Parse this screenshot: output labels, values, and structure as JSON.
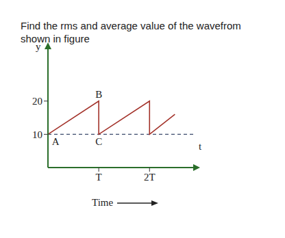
{
  "chart_data": {
    "type": "line",
    "title": "Find the rms and average value of the wavefrom shown in figure",
    "xlabel": "Time",
    "ylabel": "y",
    "x": [
      0,
      1,
      1,
      2,
      2,
      2.5
    ],
    "values": [
      10,
      20,
      10,
      20,
      10,
      16
    ],
    "color": "#a3322a",
    "xlim": [
      0,
      2.9
    ],
    "xticks": [
      {
        "value": 1,
        "label": "T"
      },
      {
        "value": 2,
        "label": "2T"
      }
    ],
    "ylim": [
      0,
      36
    ],
    "yticks": [
      10,
      20
    ],
    "grid": false,
    "hline": {
      "y": 10,
      "color": "#3b4a6b",
      "line_style": "dashed"
    },
    "annotations": [
      {
        "text": "A",
        "x": 0.15,
        "y": 10
      },
      {
        "text": "B",
        "x": 1,
        "y": 20
      },
      {
        "text": "C",
        "x": 1,
        "y": 10
      },
      {
        "text": "t",
        "x": 2.9,
        "y": 6.5
      }
    ]
  }
}
